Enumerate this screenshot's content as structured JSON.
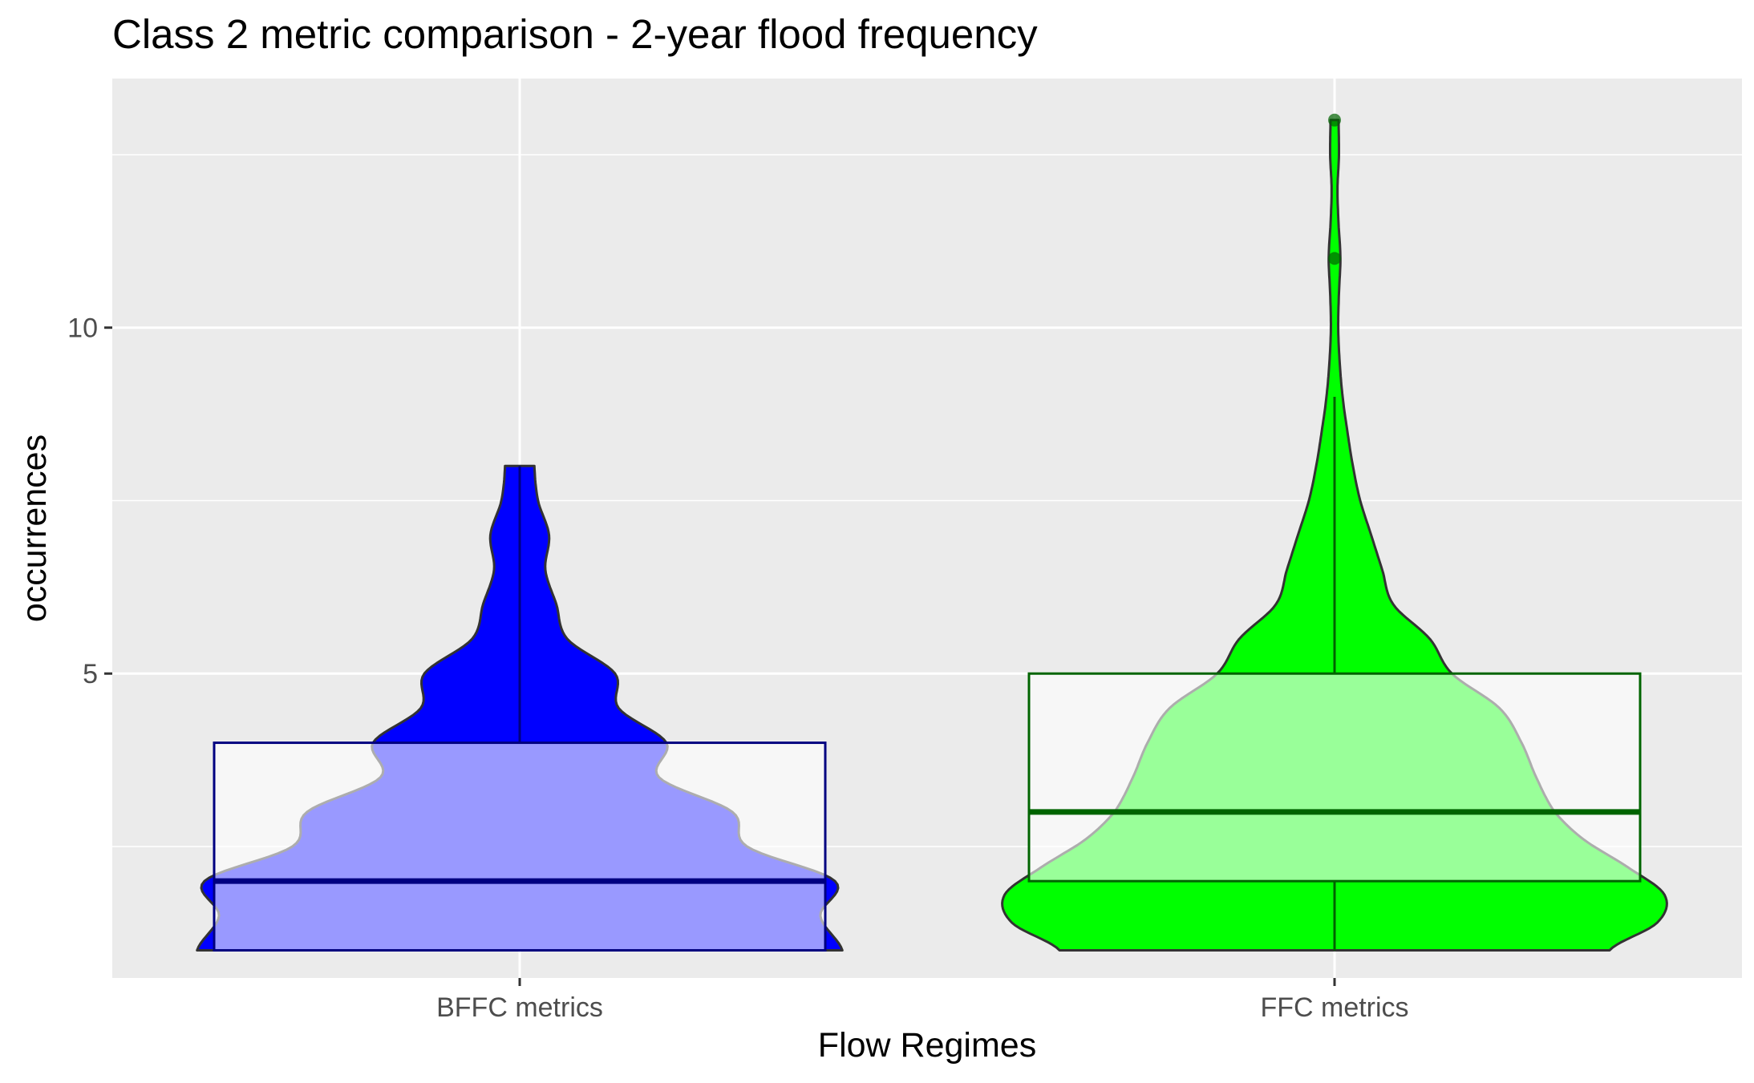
{
  "chart_data": {
    "type": "violin",
    "title": "Class 2 metric comparison - 2-year flood frequency",
    "xlabel": "Flow Regimes",
    "ylabel": "occurrences",
    "ylim": [
      0.6,
      13.6
    ],
    "yticks": [
      5,
      10
    ],
    "grid": true,
    "legend": "none",
    "categories": [
      "BFFC metrics",
      "FFC metrics"
    ],
    "series": [
      {
        "category": "BFFC metrics",
        "fill_color": "#0000ff",
        "box_color": "#000080",
        "box": {
          "min": 1,
          "q1": 1,
          "median": 2,
          "q3": 4,
          "max": 8
        },
        "outliers": [],
        "density": {
          "y": [
            1,
            1.5,
            2.0,
            2.5,
            3.0,
            3.5,
            4.0,
            4.5,
            5.0,
            5.5,
            6.0,
            6.5,
            7.0,
            7.5,
            8.0
          ],
          "width": [
            0.88,
            0.82,
            0.86,
            0.62,
            0.58,
            0.38,
            0.4,
            0.27,
            0.26,
            0.13,
            0.1,
            0.07,
            0.08,
            0.05,
            0.04
          ]
        }
      },
      {
        "category": "FFC metrics",
        "fill_color": "#00ff00",
        "box_color": "#006400",
        "box": {
          "min": 1,
          "q1": 2,
          "median": 3,
          "q3": 5,
          "max": 9
        },
        "outliers": [
          11,
          13
        ],
        "density": {
          "y": [
            1,
            1.4,
            1.8,
            2.2,
            2.6,
            3.0,
            3.5,
            4.0,
            4.5,
            5.0,
            5.5,
            6.0,
            6.5,
            7.0,
            7.5,
            8.0,
            8.5,
            9.0,
            9.5,
            10.0,
            10.5,
            11.0,
            11.5,
            12.0,
            12.5,
            13.0
          ],
          "width": [
            0.75,
            0.88,
            0.9,
            0.8,
            0.68,
            0.6,
            0.55,
            0.51,
            0.45,
            0.32,
            0.26,
            0.16,
            0.13,
            0.1,
            0.07,
            0.05,
            0.035,
            0.022,
            0.014,
            0.01,
            0.012,
            0.016,
            0.011,
            0.008,
            0.012,
            0.011
          ]
        }
      }
    ]
  }
}
